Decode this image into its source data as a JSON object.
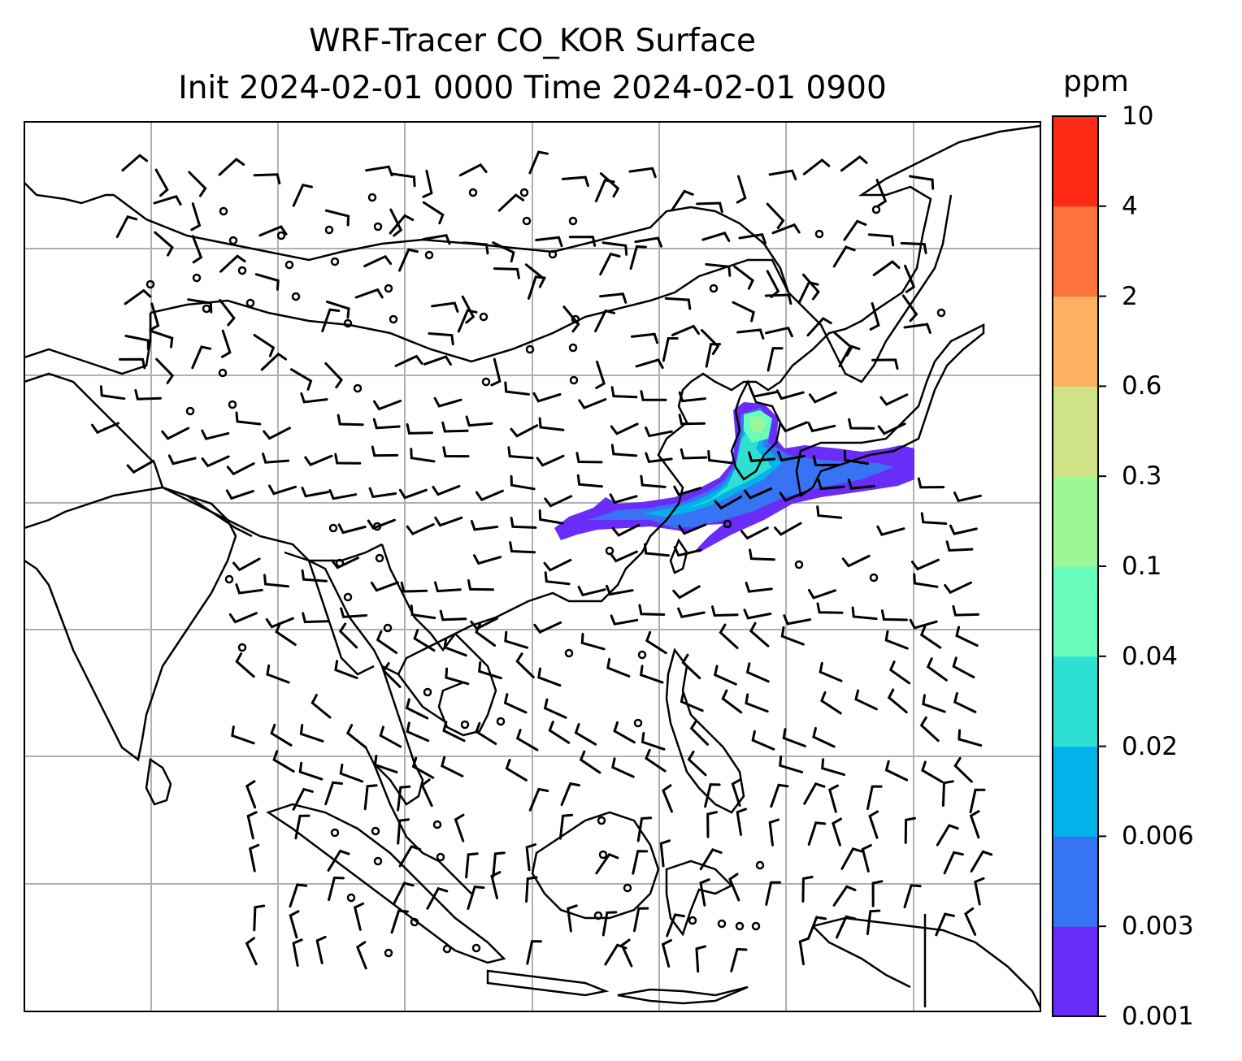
{
  "title": {
    "line1": "WRF-Tracer CO_KOR Surface",
    "line2": "Init 2024-02-01 0000 Time 2024-02-01 0900"
  },
  "colorbar": {
    "unit": "ppm",
    "levels": [
      "0.001",
      "0.003",
      "0.006",
      "0.02",
      "0.04",
      "0.1",
      "0.3",
      "0.6",
      "2",
      "4",
      "10"
    ],
    "colors": [
      "#6a2cf8",
      "#3774f4",
      "#02b3ea",
      "#2ee0d2",
      "#6afcbd",
      "#9ef795",
      "#d0e286",
      "#feb160",
      "#fe733d",
      "#fe2c17"
    ]
  },
  "map": {
    "gridlines": true,
    "grid_color": "#b0b0b0",
    "features": [
      "coastlines",
      "country-borders",
      "wind-barbs",
      "calm-wind-circles",
      "tracer-plume"
    ]
  }
}
